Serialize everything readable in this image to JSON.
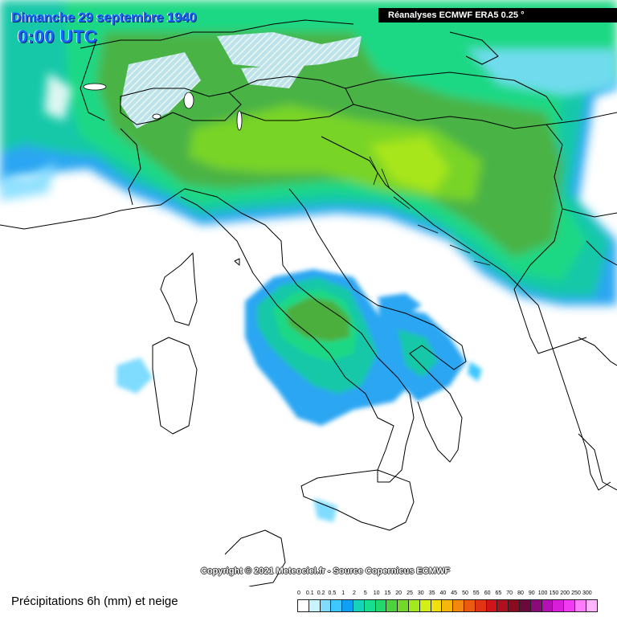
{
  "header": {
    "date": "Dimanche 29 septembre 1940",
    "time": "0:00 UTC",
    "source": "Réanalyses ECMWF ERA5 0.25 °"
  },
  "footer": {
    "copyright": "Copyright © 2021 Meteociel.fr - Source Copernicus ECMWF",
    "legend_title": "Précipitations 6h (mm) et neige"
  },
  "legend": {
    "labels": [
      "0",
      "0.1",
      "0.2",
      "0.5",
      "1",
      "2",
      "5",
      "10",
      "15",
      "20",
      "25",
      "30",
      "35",
      "40",
      "45",
      "50",
      "55",
      "60",
      "65",
      "70",
      "80",
      "90",
      "100",
      "150",
      "200",
      "250",
      "300"
    ],
    "colors": [
      "#ffffff",
      "#c8f4ff",
      "#7fdcff",
      "#3ec8ff",
      "#0fa0f5",
      "#16d2b8",
      "#18dc8e",
      "#22d86c",
      "#4cd23c",
      "#74d828",
      "#a4e81e",
      "#d2f016",
      "#f0e010",
      "#f6b60e",
      "#f2880e",
      "#ea5a10",
      "#e03414",
      "#d0141c",
      "#b0101e",
      "#8a0a20",
      "#6a0a3a",
      "#8a0a7a",
      "#b410b4",
      "#d81ed8",
      "#f03cf0",
      "#ff7cff",
      "#ffb4ff"
    ]
  },
  "colors": {
    "title_blue": "#1565ff",
    "sea": "#ffffff",
    "border": "#000000"
  }
}
